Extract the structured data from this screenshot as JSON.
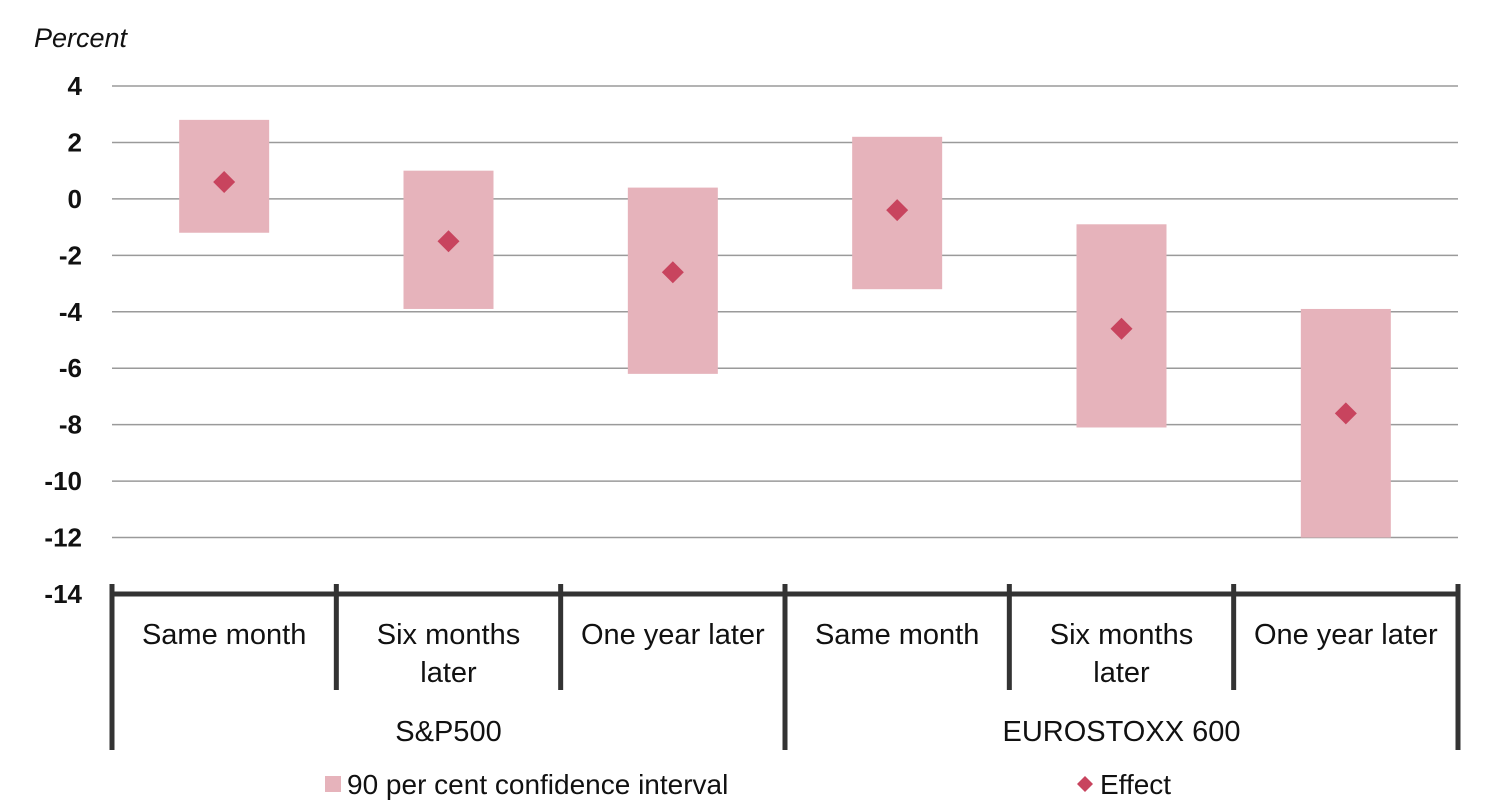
{
  "chart_data": {
    "type": "bar",
    "ylabel": "Percent",
    "ylim": [
      -14,
      4
    ],
    "yticks": [
      "4",
      "2",
      "0",
      "-2",
      "-4",
      "-6",
      "-8",
      "-10",
      "-12",
      "-14"
    ],
    "categories": [
      {
        "label_lines": [
          "Same month"
        ],
        "group": "S&P500"
      },
      {
        "label_lines": [
          "Six months",
          "later"
        ],
        "group": "S&P500"
      },
      {
        "label_lines": [
          "One year later"
        ],
        "group": "S&P500"
      },
      {
        "label_lines": [
          "Same month"
        ],
        "group": "EUROSTOXX 600"
      },
      {
        "label_lines": [
          "Six months",
          "later"
        ],
        "group": "EUROSTOXX 600"
      },
      {
        "label_lines": [
          "One year later"
        ],
        "group": "EUROSTOXX 600"
      }
    ],
    "groups": [
      "S&P500",
      "EUROSTOXX 600"
    ],
    "series": [
      {
        "name": "90 per cent confidence interval",
        "kind": "floating-bar",
        "low": [
          -1.2,
          -3.9,
          -6.2,
          -3.2,
          -8.1,
          -12.0
        ],
        "high": [
          2.8,
          1.0,
          0.4,
          2.2,
          -0.9,
          -3.9
        ],
        "color": "#e6b3bb"
      },
      {
        "name": "Effect",
        "kind": "marker",
        "values": [
          0.6,
          -1.5,
          -2.6,
          -0.4,
          -4.6,
          -7.6
        ],
        "color": "#c8445e"
      }
    ],
    "grid": true,
    "legend": "bottom"
  }
}
